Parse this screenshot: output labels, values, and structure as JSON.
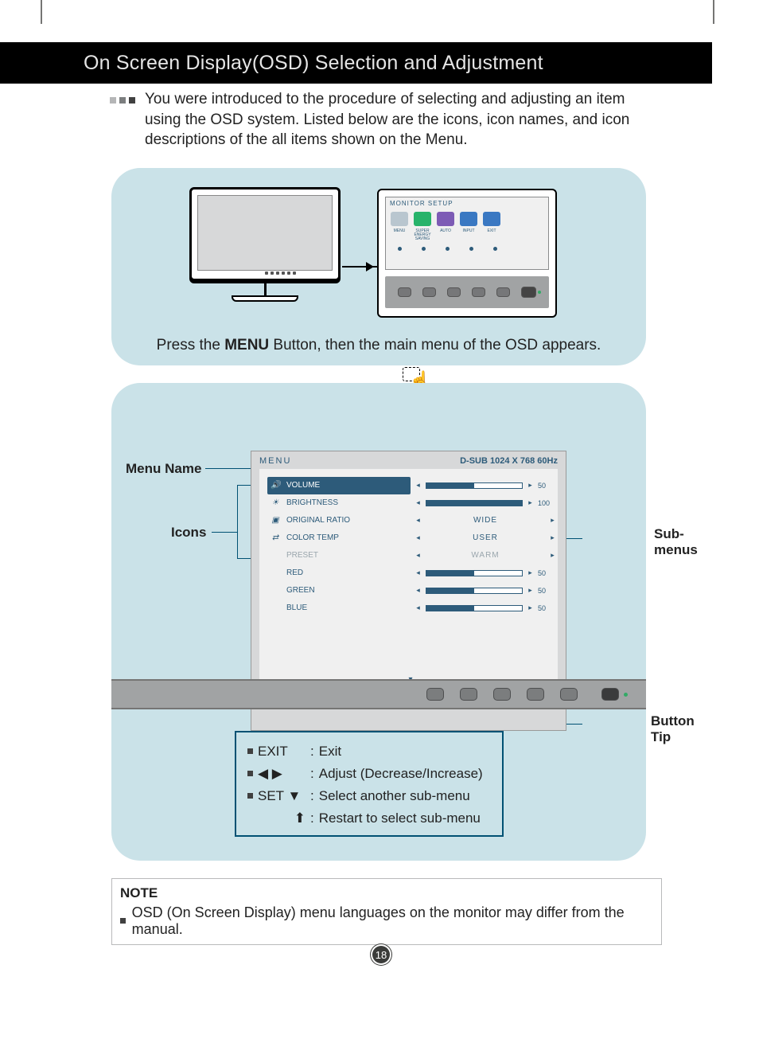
{
  "colors": {
    "panel_bg": "#cae2e8",
    "accent": "#005173",
    "osd_blue": "#2d5b7a",
    "btnbar": "#a1a3a4",
    "black": "#000000",
    "bullet_grey": "#b5b6b7",
    "bullet_mid": "#7c7e7f",
    "bullet_dark": "#404040"
  },
  "page_number": "18",
  "header_title": "On Screen Display(OSD) Selection and Adjustment",
  "intro": "You were introduced to the procedure of selecting and adjusting an item using the OSD system. Listed below are the icons, icon names, and icon descriptions of the all items shown on the Menu.",
  "panel1": {
    "caption_pre": "Press the ",
    "caption_bold": "MENU",
    "caption_post": " Button, then the main menu of the OSD appears.",
    "zoom_title": "MONITOR SETUP",
    "zoom_labels": [
      "MENU",
      "SUPER ENERGY SAVING",
      "AUTO",
      "INPUT",
      "EXIT"
    ],
    "zoom_icon_colors": [
      "#b9c6cf",
      "#27b36a",
      "#7d5bb5",
      "#3a78c2",
      "#3a78c2"
    ]
  },
  "panel2": {
    "labels": {
      "menu_name": "Menu Name",
      "icons": "Icons",
      "submenus": "Sub-\nmenus",
      "button_tip": "Button\nTip"
    },
    "osd": {
      "title": "MENU",
      "signal": "D-SUB 1024 X 768 60Hz",
      "rows": [
        {
          "icon": "🔊",
          "label": "VOLUME",
          "active": true,
          "control": {
            "type": "bar",
            "fill": 50,
            "val": "50"
          }
        },
        {
          "icon": "☀",
          "label": "BRIGHTNESS",
          "active": false,
          "control": {
            "type": "bar",
            "fill": 100,
            "val": "100"
          }
        },
        {
          "icon": "▣",
          "label": "ORIGINAL RATIO",
          "active": false,
          "control": {
            "type": "text",
            "value": "WIDE"
          }
        },
        {
          "icon": "⇄",
          "label": "COLOR TEMP",
          "active": false,
          "control": {
            "type": "text",
            "value": "USER"
          }
        },
        {
          "icon": "",
          "label": "PRESET",
          "active": false,
          "dim": true,
          "control": {
            "type": "text",
            "value": "WARM",
            "dim": true
          }
        },
        {
          "icon": "",
          "label": "RED",
          "active": false,
          "control": {
            "type": "bar",
            "fill": 50,
            "val": "50"
          }
        },
        {
          "icon": "",
          "label": "GREEN",
          "active": false,
          "control": {
            "type": "bar",
            "fill": 50,
            "val": "50"
          }
        },
        {
          "icon": "",
          "label": "BLUE",
          "active": false,
          "control": {
            "type": "bar",
            "fill": 50,
            "val": "50"
          }
        }
      ],
      "nav": {
        "up": "⬆",
        "left": "◀",
        "right": "▶",
        "down": "▼",
        "exit": "EXIT"
      }
    },
    "legend": [
      {
        "key": "EXIT",
        "key_type": "text",
        "desc": "Exit"
      },
      {
        "key": "◀ ▶",
        "key_type": "glyph",
        "desc": "Adjust (Decrease/Increase)"
      },
      {
        "key": "SET ▼",
        "key_type": "text",
        "desc": "Select another sub-menu"
      },
      {
        "key": "⬆",
        "key_type": "glyph_indent",
        "desc": "Restart to select sub-menu"
      }
    ]
  },
  "note": {
    "label": "NOTE",
    "text": "OSD (On Screen Display) menu languages on the monitor may differ from the manual."
  }
}
